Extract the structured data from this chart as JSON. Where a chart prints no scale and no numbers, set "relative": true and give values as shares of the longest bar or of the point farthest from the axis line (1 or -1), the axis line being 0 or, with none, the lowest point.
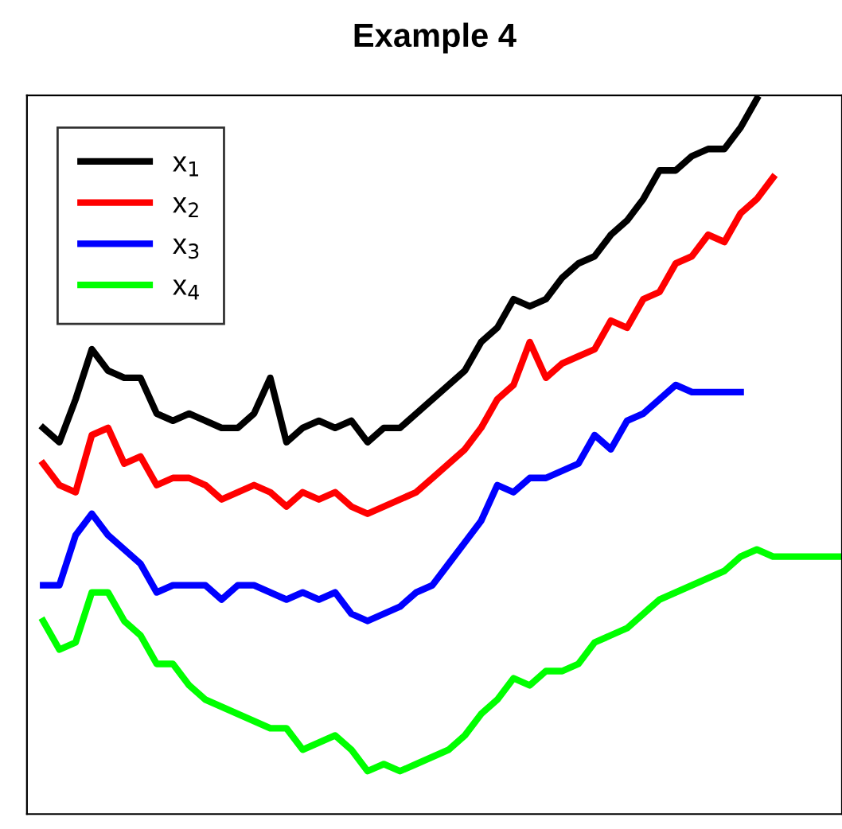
{
  "chart_data": {
    "type": "line",
    "title": "Example 4",
    "relative": true,
    "legend": "top left",
    "marker": "none",
    "line_style": "solid",
    "categories": [
      null,
      null,
      null,
      null,
      null,
      null,
      null,
      null,
      null,
      null,
      null,
      null,
      null,
      null,
      null,
      null,
      null,
      null,
      null,
      null,
      null,
      null,
      null,
      null,
      null,
      null,
      null,
      null,
      null,
      null,
      null,
      null,
      null,
      null,
      null,
      null,
      null,
      null,
      null,
      null,
      null,
      null,
      null,
      null,
      null,
      null,
      null,
      null,
      null,
      null
    ],
    "series": [
      {
        "name": "x$_{1}$",
        "color": "#000000",
        "values": [
          0.54,
          0.52,
          0.58,
          0.65,
          0.62,
          0.61,
          0.61,
          0.56,
          0.55,
          0.56,
          0.55,
          0.54,
          0.54,
          0.56,
          0.61,
          0.52,
          0.54,
          0.55,
          0.54,
          0.55,
          0.52,
          0.54,
          0.54,
          0.56,
          0.58,
          0.6,
          0.62,
          0.66,
          0.68,
          0.72,
          0.71,
          0.72,
          0.75,
          0.77,
          0.78,
          0.81,
          0.83,
          0.86,
          0.9,
          0.9,
          0.92,
          0.93,
          0.93,
          0.96,
          1.0,
          null,
          null,
          null,
          null,
          null
        ]
      },
      {
        "name": "x$_{2}$",
        "color": "#ff0000",
        "values": [
          0.49,
          0.46,
          0.45,
          0.53,
          0.54,
          0.49,
          0.5,
          0.46,
          0.47,
          0.47,
          0.46,
          0.44,
          0.45,
          0.46,
          0.45,
          0.43,
          0.45,
          0.44,
          0.45,
          0.43,
          0.42,
          0.43,
          0.44,
          0.45,
          0.47,
          0.49,
          0.51,
          0.54,
          0.58,
          0.6,
          0.66,
          0.61,
          0.63,
          0.64,
          0.65,
          0.69,
          0.68,
          0.72,
          0.73,
          0.77,
          0.78,
          0.81,
          0.8,
          0.84,
          0.86,
          0.89,
          null,
          null,
          null,
          null
        ]
      },
      {
        "name": "x$_{3}$",
        "color": "#0000ff",
        "values": [
          0.32,
          0.32,
          0.39,
          0.42,
          0.39,
          0.37,
          0.35,
          0.31,
          0.32,
          0.32,
          0.32,
          0.3,
          0.32,
          0.32,
          0.31,
          0.3,
          0.31,
          0.3,
          0.31,
          0.28,
          0.27,
          0.28,
          0.29,
          0.31,
          0.32,
          0.35,
          0.38,
          0.41,
          0.46,
          0.45,
          0.47,
          0.47,
          0.48,
          0.49,
          0.53,
          0.51,
          0.55,
          0.56,
          0.58,
          0.6,
          0.59,
          0.59,
          0.59,
          0.59,
          null,
          null,
          null,
          null,
          null,
          null
        ]
      },
      {
        "name": "x$_{4}$",
        "color": "#00ff00",
        "values": [
          0.27,
          0.23,
          0.24,
          0.31,
          0.31,
          0.27,
          0.25,
          0.21,
          0.21,
          0.18,
          0.16,
          0.15,
          0.14,
          0.13,
          0.12,
          0.12,
          0.09,
          0.1,
          0.11,
          0.09,
          0.06,
          0.07,
          0.06,
          0.07,
          0.08,
          0.09,
          0.11,
          0.14,
          0.16,
          0.19,
          0.18,
          0.2,
          0.2,
          0.21,
          0.24,
          0.25,
          0.26,
          0.28,
          0.3,
          0.31,
          0.32,
          0.33,
          0.34,
          0.36,
          0.37,
          0.36,
          0.36,
          0.36,
          0.36,
          0.36
        ]
      }
    ]
  }
}
